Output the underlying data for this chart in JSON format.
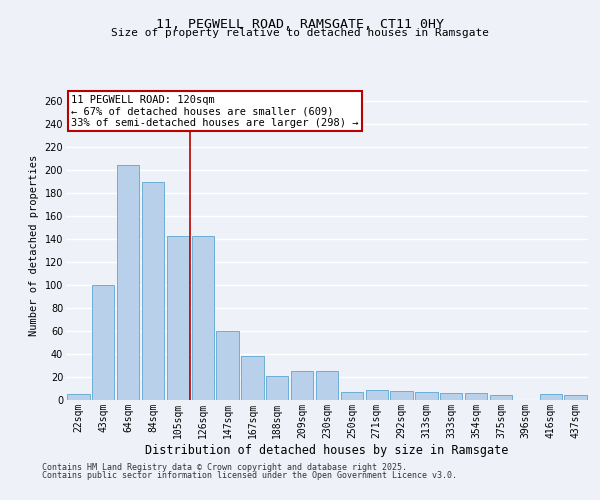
{
  "title1": "11, PEGWELL ROAD, RAMSGATE, CT11 0HY",
  "title2": "Size of property relative to detached houses in Ramsgate",
  "xlabel": "Distribution of detached houses by size in Ramsgate",
  "ylabel": "Number of detached properties",
  "categories": [
    "22sqm",
    "43sqm",
    "64sqm",
    "84sqm",
    "105sqm",
    "126sqm",
    "147sqm",
    "167sqm",
    "188sqm",
    "209sqm",
    "230sqm",
    "250sqm",
    "271sqm",
    "292sqm",
    "313sqm",
    "333sqm",
    "354sqm",
    "375sqm",
    "396sqm",
    "416sqm",
    "437sqm"
  ],
  "values": [
    5,
    100,
    205,
    190,
    143,
    143,
    60,
    38,
    21,
    25,
    25,
    7,
    9,
    8,
    7,
    6,
    6,
    4,
    0,
    5,
    4
  ],
  "bar_color": "#b8d0ea",
  "bar_edge_color": "#6aaed6",
  "vline_index": 4.5,
  "annotation_line1": "11 PEGWELL ROAD: 120sqm",
  "annotation_line2": "← 67% of detached houses are smaller (609)",
  "annotation_line3": "33% of semi-detached houses are larger (298) →",
  "annotation_box_color": "#ffffff",
  "annotation_box_edge": "#bb0000",
  "vline_color": "#bb0000",
  "ylim": [
    0,
    270
  ],
  "yticks": [
    0,
    20,
    40,
    60,
    80,
    100,
    120,
    140,
    160,
    180,
    200,
    220,
    240,
    260
  ],
  "footer1": "Contains HM Land Registry data © Crown copyright and database right 2025.",
  "footer2": "Contains public sector information licensed under the Open Government Licence v3.0.",
  "bg_color": "#eef2f8",
  "grid_color": "#ffffff",
  "title_fontsize": 9.5,
  "subtitle_fontsize": 8,
  "ylabel_fontsize": 7.5,
  "xlabel_fontsize": 8.5,
  "tick_fontsize": 7,
  "footer_fontsize": 6,
  "ann_fontsize": 7.5
}
